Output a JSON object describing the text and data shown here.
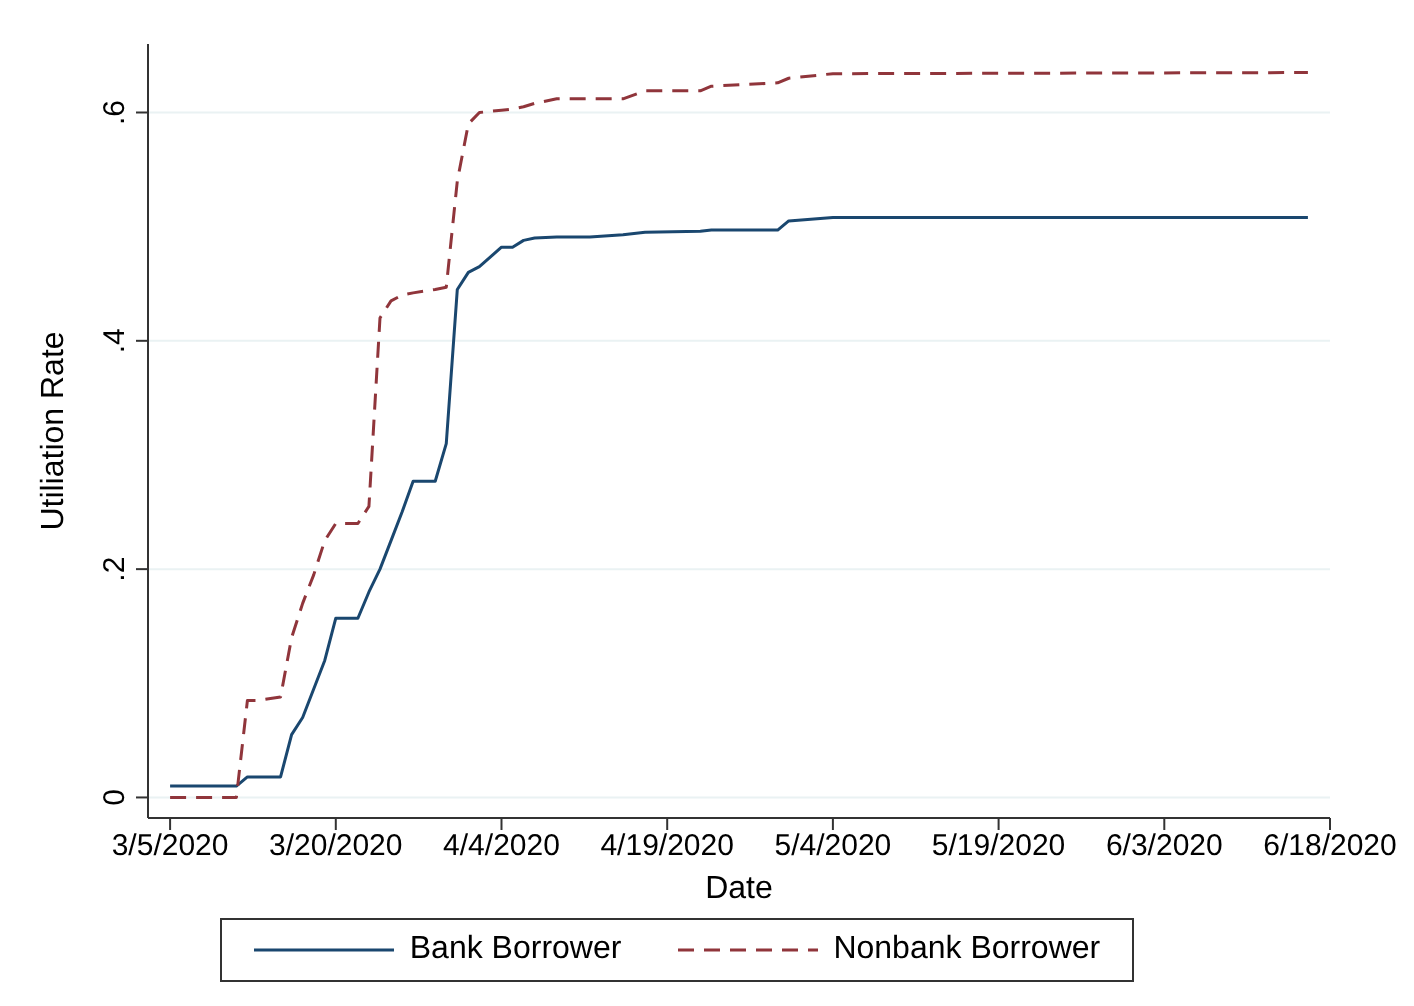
{
  "chart_data": {
    "type": "line",
    "xlabel": "Date",
    "ylabel": "Utiliation Rate",
    "x": [
      "2020-03-05",
      "2020-03-11",
      "2020-03-12",
      "2020-03-13",
      "2020-03-15",
      "2020-03-16",
      "2020-03-17",
      "2020-03-18",
      "2020-03-19",
      "2020-03-20",
      "2020-03-22",
      "2020-03-23",
      "2020-03-24",
      "2020-03-25",
      "2020-03-26",
      "2020-03-27",
      "2020-03-29",
      "2020-03-30",
      "2020-03-31",
      "2020-04-01",
      "2020-04-02",
      "2020-04-04",
      "2020-04-05",
      "2020-04-06",
      "2020-04-07",
      "2020-04-09",
      "2020-04-12",
      "2020-04-15",
      "2020-04-17",
      "2020-04-22",
      "2020-04-23",
      "2020-04-29",
      "2020-04-30",
      "2020-05-04",
      "2020-06-16"
    ],
    "series": [
      {
        "name": "Bank Borrower",
        "color": "#1a476f",
        "line_style": "solid",
        "values": [
          0.01,
          0.01,
          0.018,
          0.018,
          0.018,
          0.055,
          0.07,
          0.095,
          0.12,
          0.157,
          0.157,
          0.18,
          0.2,
          0.225,
          0.25,
          0.277,
          0.277,
          0.31,
          0.445,
          0.46,
          0.465,
          0.482,
          0.482,
          0.488,
          0.49,
          0.491,
          0.491,
          0.493,
          0.495,
          0.496,
          0.497,
          0.497,
          0.505,
          0.508,
          0.508
        ]
      },
      {
        "name": "Nonbank Borrower",
        "color": "#90353b",
        "line_style": "dashed",
        "values": [
          0,
          0,
          0.085,
          0.085,
          0.088,
          0.14,
          0.17,
          0.195,
          0.225,
          0.24,
          0.24,
          0.255,
          0.42,
          0.435,
          0.44,
          0.442,
          0.445,
          0.447,
          0.54,
          0.59,
          0.6,
          0.602,
          0.603,
          0.605,
          0.608,
          0.612,
          0.612,
          0.612,
          0.619,
          0.619,
          0.623,
          0.626,
          0.63,
          0.634,
          0.635
        ]
      }
    ],
    "xlim": [
      "2020-03-03",
      "2020-06-18"
    ],
    "xticks": [
      {
        "value": "2020-03-05",
        "label": "3/5/2020"
      },
      {
        "value": "2020-03-20",
        "label": "3/20/2020"
      },
      {
        "value": "2020-04-04",
        "label": "4/4/2020"
      },
      {
        "value": "2020-04-19",
        "label": "4/19/2020"
      },
      {
        "value": "2020-05-04",
        "label": "5/4/2020"
      },
      {
        "value": "2020-05-19",
        "label": "5/19/2020"
      },
      {
        "value": "2020-06-03",
        "label": "6/3/2020"
      },
      {
        "value": "2020-06-18",
        "label": "6/18/2020"
      }
    ],
    "ylim": [
      -0.018,
      0.66
    ],
    "yticks": [
      0,
      {
        "value": 0.2,
        "label": ".2"
      },
      {
        "value": 0.4,
        "label": ".4"
      },
      {
        "value": 0.6,
        "label": ".6"
      }
    ],
    "grid": "y",
    "legend": "bottom",
    "marker": "none"
  }
}
